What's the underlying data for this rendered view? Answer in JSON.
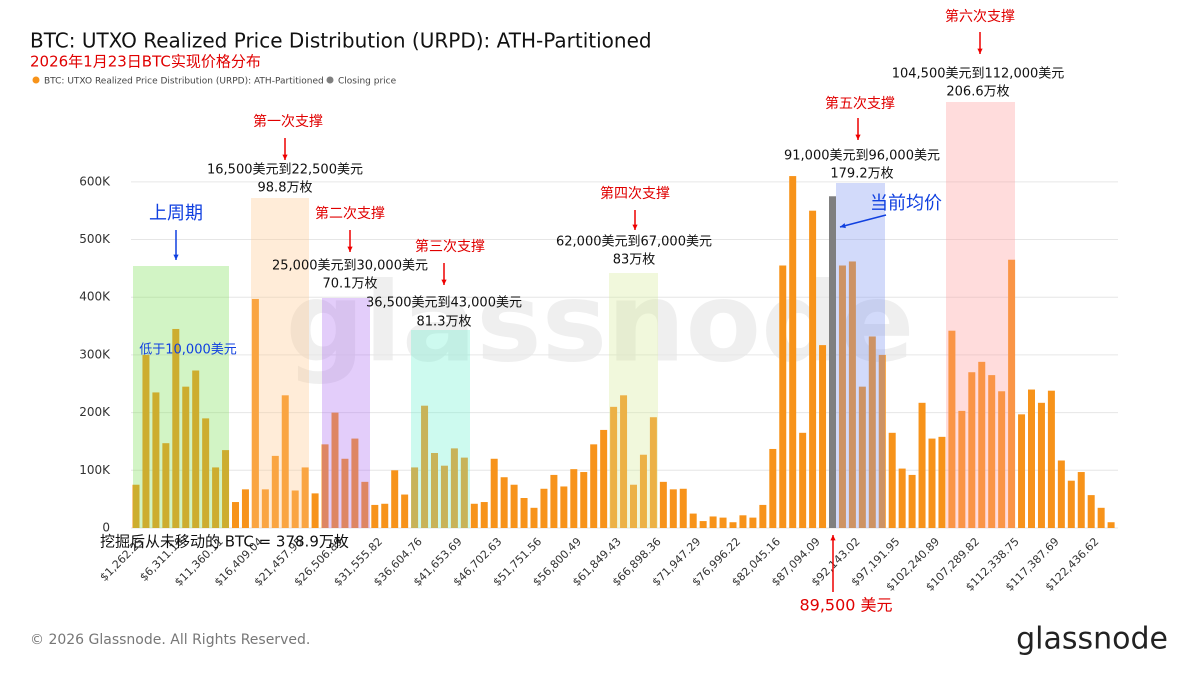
{
  "chart_data": {
    "type": "bar",
    "title": "BTC: UTXO Realized Price Distribution (URPD): ATH-Partitioned",
    "subtitle": "2026年1月23日BTC实现价格分布",
    "categories": [
      "$1,262.25",
      null,
      null,
      null,
      "$6,311.18",
      null,
      null,
      null,
      "$11,360.11",
      null,
      null,
      null,
      "$16,409.04",
      null,
      null,
      null,
      "$21,457.95",
      null,
      null,
      null,
      "$26,506.89",
      null,
      null,
      null,
      "$31,555.82",
      null,
      null,
      null,
      "$36,604.76",
      null,
      null,
      null,
      "$41,653.69",
      null,
      null,
      null,
      "$46,702.63",
      null,
      null,
      null,
      "$51,751.56",
      null,
      null,
      null,
      "$56,800.49",
      null,
      null,
      null,
      "$61,849.43",
      null,
      null,
      null,
      "$66,898.36",
      null,
      null,
      null,
      "$71,947.29",
      null,
      null,
      null,
      "$76,996.22",
      null,
      null,
      null,
      "$82,045.16",
      null,
      null,
      null,
      "$87,094.09",
      null,
      null,
      null,
      "$92,143.02",
      null,
      null,
      null,
      "$97,191.95",
      null,
      null,
      null,
      "$102,240.89",
      null,
      null,
      null,
      "$107,289.82",
      null,
      null,
      null,
      "$112,338.75",
      null,
      null,
      null,
      "$117,387.69",
      null,
      null,
      null,
      "$122,436.62",
      null,
      null
    ],
    "series": [
      {
        "name": "BTC: UTXO Realized Price Distribution (URPD): ATH-Partitioned",
        "color": "#f7931a",
        "values": [
          75000,
          300000,
          235000,
          147000,
          345000,
          245000,
          273000,
          190000,
          105000,
          135000,
          45000,
          67000,
          397000,
          67000,
          125000,
          230000,
          65000,
          105000,
          60000,
          145000,
          200000,
          120000,
          155000,
          80000,
          40000,
          42000,
          100000,
          58000,
          105000,
          212000,
          130000,
          108000,
          138000,
          122000,
          42000,
          45000,
          120000,
          88000,
          75000,
          52000,
          35000,
          68000,
          92000,
          72000,
          102000,
          97000,
          145000,
          170000,
          210000,
          230000,
          75000,
          127000,
          192000,
          80000,
          67000,
          68000,
          25000,
          12000,
          20000,
          18000,
          10000,
          22000,
          18000,
          40000,
          137000,
          455000,
          610000,
          165000,
          550000,
          317000,
          null,
          455000,
          462000,
          245000,
          332000,
          300000,
          165000,
          103000,
          92000,
          217000,
          155000,
          158000,
          342000,
          203000,
          270000,
          288000,
          265000,
          237000,
          465000,
          197000,
          240000,
          217000,
          238000,
          117000,
          82000,
          97000,
          57000,
          35000,
          10000
        ]
      },
      {
        "name": "Closing price",
        "color": "#7f7f7f",
        "values": [
          null,
          null,
          null,
          null,
          null,
          null,
          null,
          null,
          null,
          null,
          null,
          null,
          null,
          null,
          null,
          null,
          null,
          null,
          null,
          null,
          null,
          null,
          null,
          null,
          null,
          null,
          null,
          null,
          null,
          null,
          null,
          null,
          null,
          null,
          null,
          null,
          null,
          null,
          null,
          null,
          null,
          null,
          null,
          null,
          null,
          null,
          null,
          null,
          null,
          null,
          null,
          null,
          null,
          null,
          null,
          null,
          null,
          null,
          null,
          null,
          null,
          null,
          null,
          null,
          null,
          null,
          null,
          null,
          null,
          null,
          575000,
          null,
          null,
          null,
          null,
          null,
          null,
          null,
          null,
          null,
          null,
          null,
          null,
          null,
          null,
          null,
          null,
          null,
          null,
          null,
          null,
          null,
          null,
          null,
          null,
          null,
          null,
          null,
          null
        ]
      }
    ],
    "ylim": [
      0,
      650000
    ],
    "yticks": [
      0,
      {
        "value": 100000,
        "label": "100K"
      },
      {
        "value": 200000,
        "label": "200K"
      },
      {
        "value": 300000,
        "label": "300K"
      },
      {
        "value": 400000,
        "label": "400K"
      },
      {
        "value": 500000,
        "label": "500K"
      },
      {
        "value": 600000,
        "label": "600K"
      }
    ],
    "grid": true,
    "annotations": [
      "上周期",
      "低于10,000美元",
      "第一次支撑",
      "16,500美元到22,500美元",
      "98.8万枚",
      "第二次支撑",
      "25,000美元到30,000美元",
      "70.1万枚",
      "第三次支撑",
      "36,500美元到43,000美元",
      "81.3万枚",
      "第四次支撑",
      "62,000美元到67,000美元",
      "83万枚",
      "第五次支撑",
      "91,000美元到96,000美元",
      "179.2万枚",
      "第六次支撑",
      "104,500美元到112,000美元",
      "206.6万枚",
      "当前均价",
      "89,500 美元",
      "挖掘后从未移动的 BTC = 378.9万枚"
    ],
    "copyright": "© 2026 Glassnode. All Rights Reserved.",
    "logo": "glassnode"
  }
}
